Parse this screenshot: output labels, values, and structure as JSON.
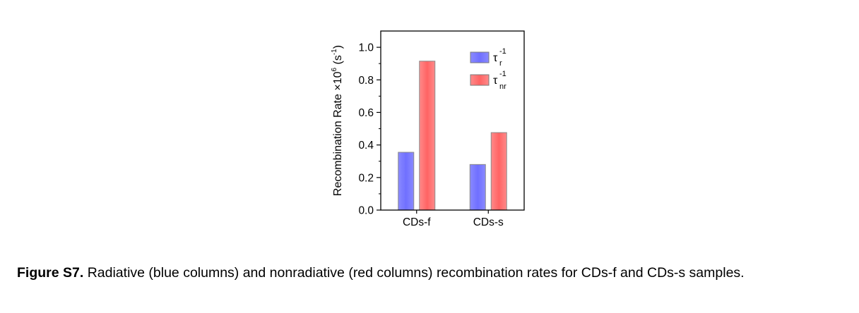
{
  "chart_data": {
    "type": "bar",
    "categories": [
      "CDs-f",
      "CDs-s"
    ],
    "series": [
      {
        "name": "τr-1",
        "legend_main": "τ",
        "legend_sub": "r",
        "legend_sup": "-1",
        "values": [
          0.355,
          0.28
        ],
        "color": "#7b7bff"
      },
      {
        "name": "τnr-1",
        "legend_main": "τ",
        "legend_sub": "nr",
        "legend_sup": "-1",
        "values": [
          0.915,
          0.476
        ],
        "color": "#ff7272"
      }
    ],
    "ylabel_main": "Recombination Rate ×10",
    "ylabel_exp": "6",
    "ylabel_unit_pre": " (s",
    "ylabel_unit_exp": "-1",
    "ylabel_unit_post": ")",
    "ylim": [
      0,
      1.1
    ],
    "yticks": [
      "0.0",
      "0.2",
      "0.4",
      "0.6",
      "0.8",
      "1.0"
    ],
    "ytick_values": [
      0,
      0.2,
      0.4,
      0.6,
      0.8,
      1.0
    ],
    "legend_position": "top-right",
    "grid": false
  },
  "caption": {
    "label": "Figure S7.",
    "text": " Radiative (blue columns) and nonradiative (red columns) recombination rates for CDs-f and CDs-s samples."
  }
}
